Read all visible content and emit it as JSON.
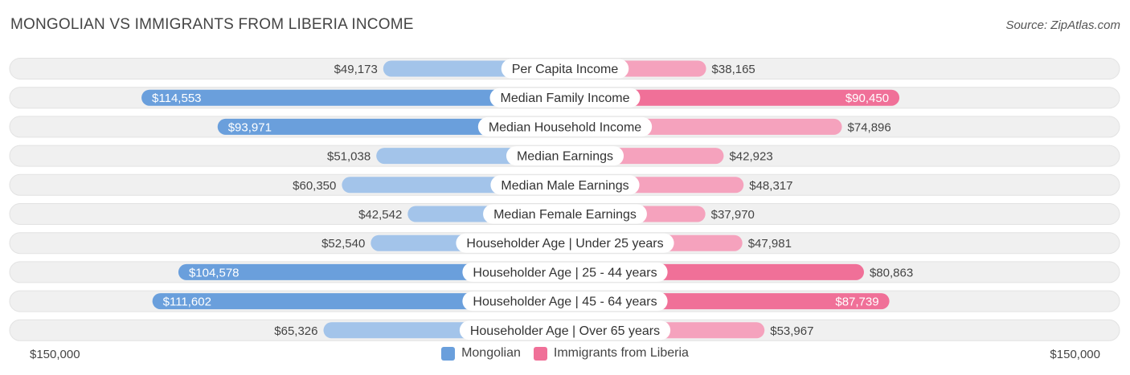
{
  "header": {
    "title": "MONGOLIAN VS IMMIGRANTS FROM LIBERIA INCOME",
    "source": "Source: ZipAtlas.com"
  },
  "axis": {
    "left_label": "$150,000",
    "right_label": "$150,000"
  },
  "legend": [
    {
      "label": "Mongolian",
      "color": "#6a9fdc"
    },
    {
      "label": "Immigrants from Liberia",
      "color": "#f07098"
    }
  ],
  "colors": {
    "left_strong": "#6a9fdc",
    "left_light": "#a3c4ea",
    "right_strong": "#f07098",
    "right_light": "#f5a2bd",
    "track": "#f0f0f0"
  },
  "chart_data": {
    "type": "bar",
    "orientation": "diverging-horizontal",
    "xlim": [
      0,
      150000
    ],
    "categories": [
      "Per Capita Income",
      "Median Family Income",
      "Median Household Income",
      "Median Earnings",
      "Median Male Earnings",
      "Median Female Earnings",
      "Householder Age | Under 25 years",
      "Householder Age | 25 - 44 years",
      "Householder Age | 45 - 64 years",
      "Householder Age | Over 65 years"
    ],
    "series": [
      {
        "name": "Mongolian",
        "side": "left",
        "values": [
          49173,
          114553,
          93971,
          51038,
          60350,
          42542,
          52540,
          104578,
          111602,
          65326
        ],
        "labels": [
          "$49,173",
          "$114,553",
          "$93,971",
          "$51,038",
          "$60,350",
          "$42,542",
          "$52,540",
          "$104,578",
          "$111,602",
          "$65,326"
        ]
      },
      {
        "name": "Immigrants from Liberia",
        "side": "right",
        "values": [
          38165,
          90450,
          74896,
          42923,
          48317,
          37970,
          47981,
          80863,
          87739,
          53967
        ],
        "labels": [
          "$38,165",
          "$90,450",
          "$74,896",
          "$42,923",
          "$48,317",
          "$37,970",
          "$47,981",
          "$80,863",
          "$87,739",
          "$53,967"
        ]
      }
    ]
  }
}
